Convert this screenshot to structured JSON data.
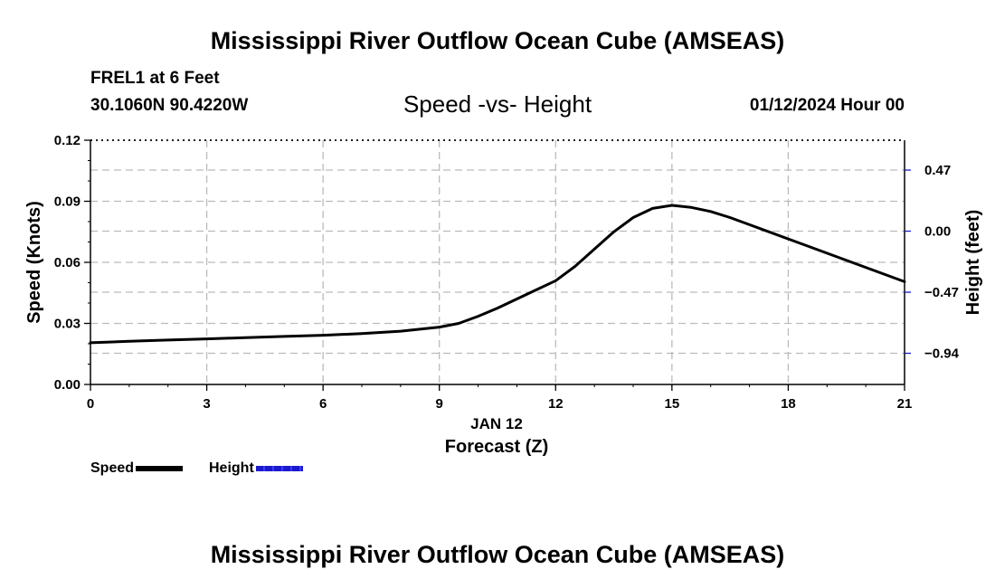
{
  "header": {
    "title": "Mississippi River Outflow Ocean Cube (AMSEAS)",
    "station": "FREL1 at 6 Feet",
    "coords": "30.1060N  90.4220W",
    "subtitle": "Speed -vs- Height",
    "datetime": "01/12/2024 Hour 00"
  },
  "footer": {
    "title": "Mississippi River Outflow Ocean Cube (AMSEAS)"
  },
  "legend": {
    "speed_label": "Speed",
    "height_label": "Height"
  },
  "colors": {
    "speed": "#000000",
    "height": "#1a1acc",
    "grid": "#bbbbbb"
  },
  "chart_data": {
    "type": "line",
    "title": "Speed -vs- Height",
    "xlabel": "Forecast (Z)",
    "xdate_label": "JAN 12",
    "ylabel": "Speed (Knots)",
    "y2label": "Height (feet)",
    "xlim": [
      0,
      21
    ],
    "ylim": [
      0,
      0.12
    ],
    "y2lim": [
      -1.18,
      0.7
    ],
    "x_ticks": [
      0,
      3,
      6,
      9,
      12,
      15,
      18,
      21
    ],
    "x_tick_labels": [
      "0",
      "3",
      "6",
      "9",
      "12",
      "15",
      "18",
      "21"
    ],
    "y_ticks": [
      0.0,
      0.03,
      0.06,
      0.09,
      0.12
    ],
    "y_tick_labels": [
      "0.00",
      "0.03",
      "0.06",
      "0.09",
      "0.12"
    ],
    "y2_ticks": [
      -0.94,
      -0.47,
      0.0,
      0.47
    ],
    "y2_tick_labels": [
      "−0.94",
      "−0.47",
      "0.00",
      "0.47"
    ],
    "grid": true,
    "legend_position": "bottom-left",
    "series": [
      {
        "name": "Speed",
        "axis": "left",
        "x": [
          0,
          1,
          2,
          3,
          4,
          5,
          6,
          7,
          8,
          9,
          9.5,
          10,
          10.5,
          11,
          11.5,
          12,
          12.5,
          13,
          13.5,
          14,
          14.5,
          15,
          15.5,
          16,
          16.5,
          17,
          18,
          19,
          20,
          21
        ],
        "values": [
          0.0205,
          0.0212,
          0.0218,
          0.0224,
          0.023,
          0.0236,
          0.0242,
          0.025,
          0.0262,
          0.0282,
          0.03,
          0.0335,
          0.0375,
          0.042,
          0.0465,
          0.051,
          0.058,
          0.0665,
          0.075,
          0.082,
          0.0865,
          0.088,
          0.087,
          0.085,
          0.082,
          0.0785,
          0.0715,
          0.0645,
          0.0575,
          0.0505
        ]
      },
      {
        "name": "Height",
        "axis": "right",
        "x": [],
        "values": []
      }
    ]
  }
}
